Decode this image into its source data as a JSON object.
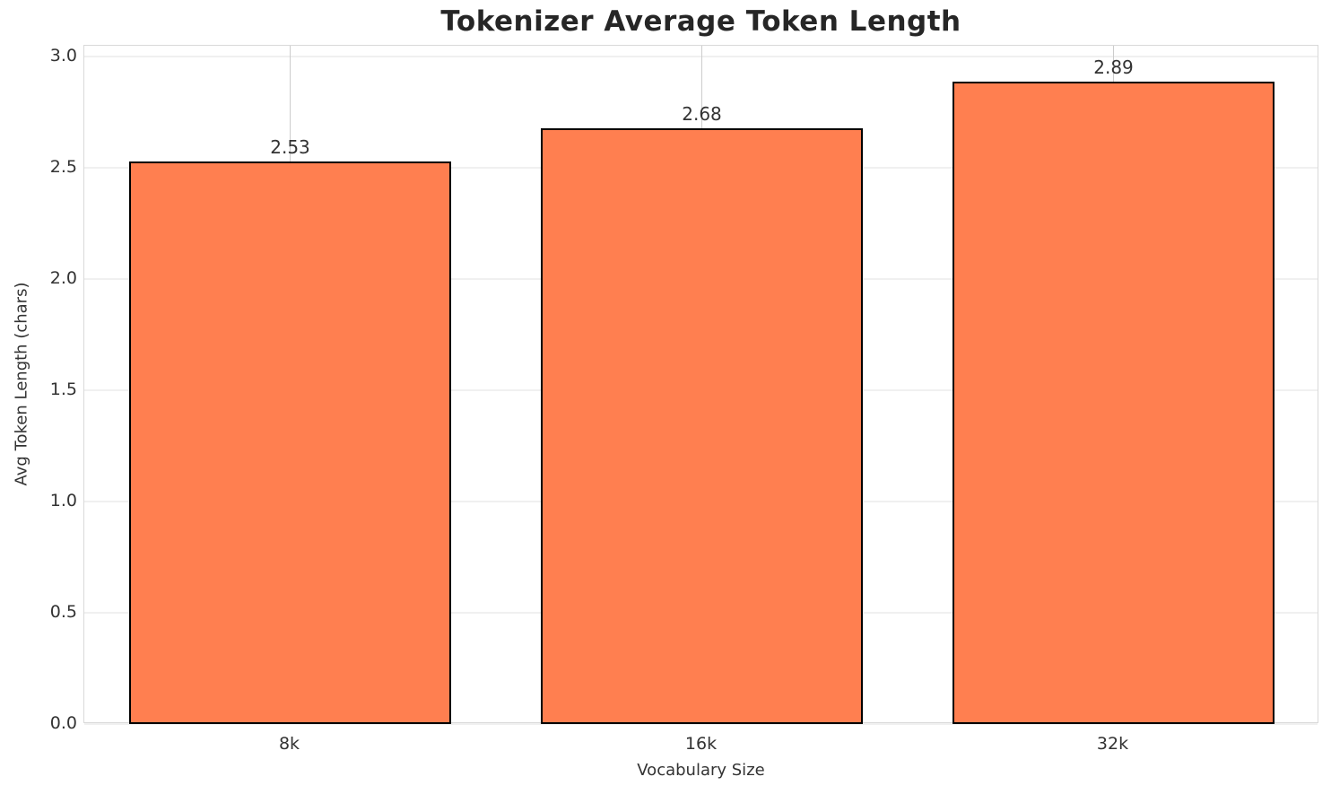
{
  "chart_data": {
    "type": "bar",
    "title": "Tokenizer Average Token Length",
    "xlabel": "Vocabulary Size",
    "ylabel": "Avg Token Length (chars)",
    "categories": [
      "8k",
      "16k",
      "32k"
    ],
    "values": [
      2.53,
      2.68,
      2.89
    ],
    "value_labels": [
      "2.53",
      "2.68",
      "2.89"
    ],
    "y_ticks": [
      0.0,
      0.5,
      1.0,
      1.5,
      2.0,
      2.5,
      3.0
    ],
    "y_tick_labels": [
      "0.0",
      "0.5",
      "1.0",
      "1.5",
      "2.0",
      "2.5",
      "3.0"
    ],
    "ylim": [
      0,
      3.05
    ],
    "bar_width_fraction": 0.78,
    "grid": "both",
    "legend_position": "none",
    "colors": {
      "bar_fill": "#FF7F50",
      "bar_edge": "#000000",
      "gridline_horizontal": "#f0f0f0",
      "gridline_vertical": "#cccccc",
      "spine": "#d9d9d9",
      "title_text": "#262626",
      "tick_text": "#333333"
    }
  }
}
